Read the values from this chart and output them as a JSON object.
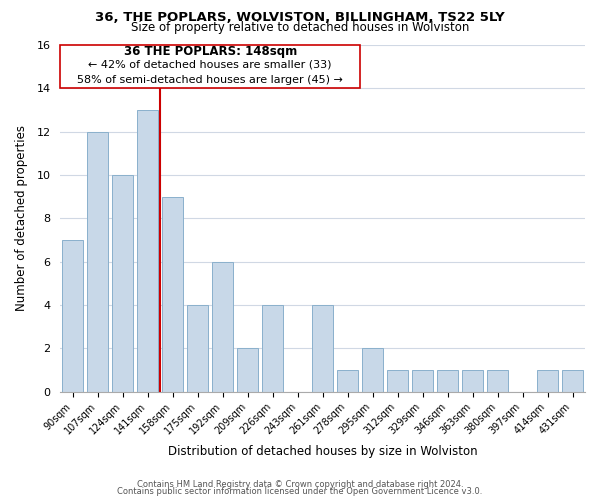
{
  "title": "36, THE POPLARS, WOLVISTON, BILLINGHAM, TS22 5LY",
  "subtitle": "Size of property relative to detached houses in Wolviston",
  "xlabel": "Distribution of detached houses by size in Wolviston",
  "ylabel": "Number of detached properties",
  "bar_labels": [
    "90sqm",
    "107sqm",
    "124sqm",
    "141sqm",
    "158sqm",
    "175sqm",
    "192sqm",
    "209sqm",
    "226sqm",
    "243sqm",
    "261sqm",
    "278sqm",
    "295sqm",
    "312sqm",
    "329sqm",
    "346sqm",
    "363sqm",
    "380sqm",
    "397sqm",
    "414sqm",
    "431sqm"
  ],
  "bar_values": [
    7,
    12,
    10,
    13,
    9,
    4,
    6,
    2,
    4,
    0,
    4,
    1,
    2,
    1,
    1,
    1,
    1,
    1,
    0,
    1,
    1
  ],
  "bar_color": "#c8d8e8",
  "bar_edgecolor": "#8ab0cc",
  "reference_line_x": 3.5,
  "reference_line_label": "36 THE POPLARS: 148sqm",
  "annotation_line1": "← 42% of detached houses are smaller (33)",
  "annotation_line2": "58% of semi-detached houses are larger (45) →",
  "vline_color": "#cc0000",
  "ylim": [
    0,
    16
  ],
  "yticks": [
    0,
    2,
    4,
    6,
    8,
    10,
    12,
    14,
    16
  ],
  "annotation_box_color": "#ffffff",
  "annotation_box_edgecolor": "#cc0000",
  "footer_line1": "Contains HM Land Registry data © Crown copyright and database right 2024.",
  "footer_line2": "Contains public sector information licensed under the Open Government Licence v3.0.",
  "background_color": "#ffffff",
  "grid_color": "#d0d8e4"
}
